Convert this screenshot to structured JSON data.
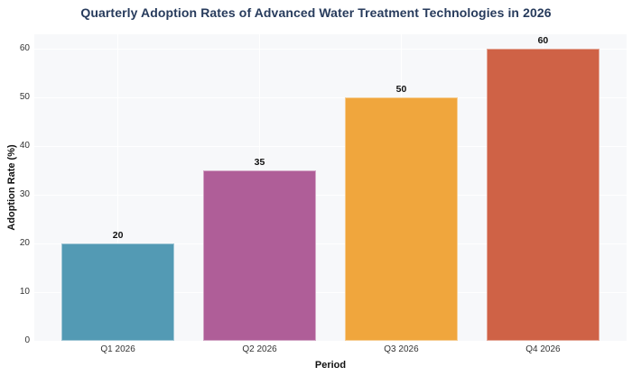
{
  "chart_data": {
    "type": "bar",
    "title": "Quarterly Adoption Rates of Advanced Water Treatment Technologies in 2026",
    "xlabel": "Period",
    "ylabel": "Adoption Rate (%)",
    "categories": [
      "Q1 2026",
      "Q2 2026",
      "Q3 2026",
      "Q4 2026"
    ],
    "values": [
      20,
      35,
      50,
      60
    ],
    "value_labels": [
      "20",
      "35",
      "50",
      "60"
    ],
    "bar_colors": [
      "#539ab4",
      "#af5e98",
      "#f0a63d",
      "#cf6246"
    ],
    "y_ticks": [
      0,
      10,
      20,
      30,
      40,
      50,
      60
    ],
    "ylim": [
      0,
      63
    ],
    "xlim": [
      -0.59,
      3.59
    ],
    "bar_width_units": 0.8,
    "grid": true,
    "legend": "none",
    "panel_background": "#f7f8fa",
    "grid_color": "#ffffff",
    "title_color": "#273b5c"
  }
}
